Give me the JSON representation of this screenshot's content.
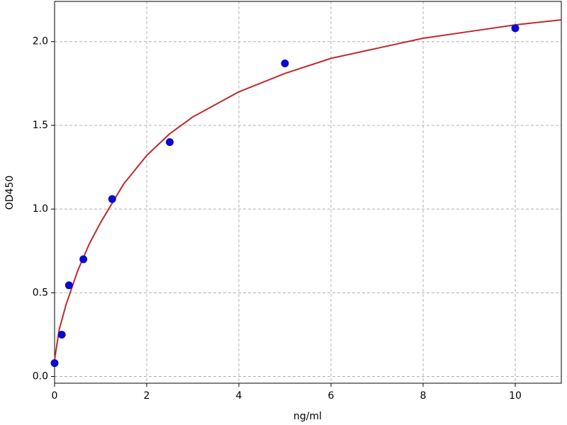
{
  "chart_data": {
    "type": "scatter",
    "xlabel": "ng/ml",
    "ylabel": "OD450",
    "xlim": [
      0,
      11
    ],
    "ylim": [
      -0.04,
      2.24
    ],
    "xticks": [
      0,
      2,
      4,
      6,
      8,
      10
    ],
    "yticks": [
      {
        "value": 0,
        "label": "0.0"
      },
      {
        "value": 0.5,
        "label": "0.5"
      },
      {
        "value": 1,
        "label": "1.0"
      },
      {
        "value": 1.5,
        "label": "1.5"
      },
      {
        "value": 2,
        "label": "2.0"
      }
    ],
    "grid": true,
    "series": [
      {
        "style": "markers",
        "color": "#0a0acc",
        "x": [
          0,
          0.156,
          0.3125,
          0.625,
          1.25,
          2.5,
          5,
          10
        ],
        "values": [
          0.08,
          0.25,
          0.545,
          0.7,
          1.06,
          1.4,
          1.87,
          2.08
        ]
      },
      {
        "style": "line",
        "color": "#c0282d",
        "x": [
          0,
          0.1,
          0.25,
          0.5,
          0.75,
          1,
          1.5,
          2,
          2.5,
          3,
          4,
          5,
          6,
          7,
          8,
          9,
          10,
          11
        ],
        "values": [
          0.1,
          0.28,
          0.43,
          0.63,
          0.79,
          0.92,
          1.15,
          1.32,
          1.45,
          1.55,
          1.7,
          1.81,
          1.9,
          1.96,
          2.02,
          2.06,
          2.1,
          2.13
        ]
      }
    ]
  }
}
